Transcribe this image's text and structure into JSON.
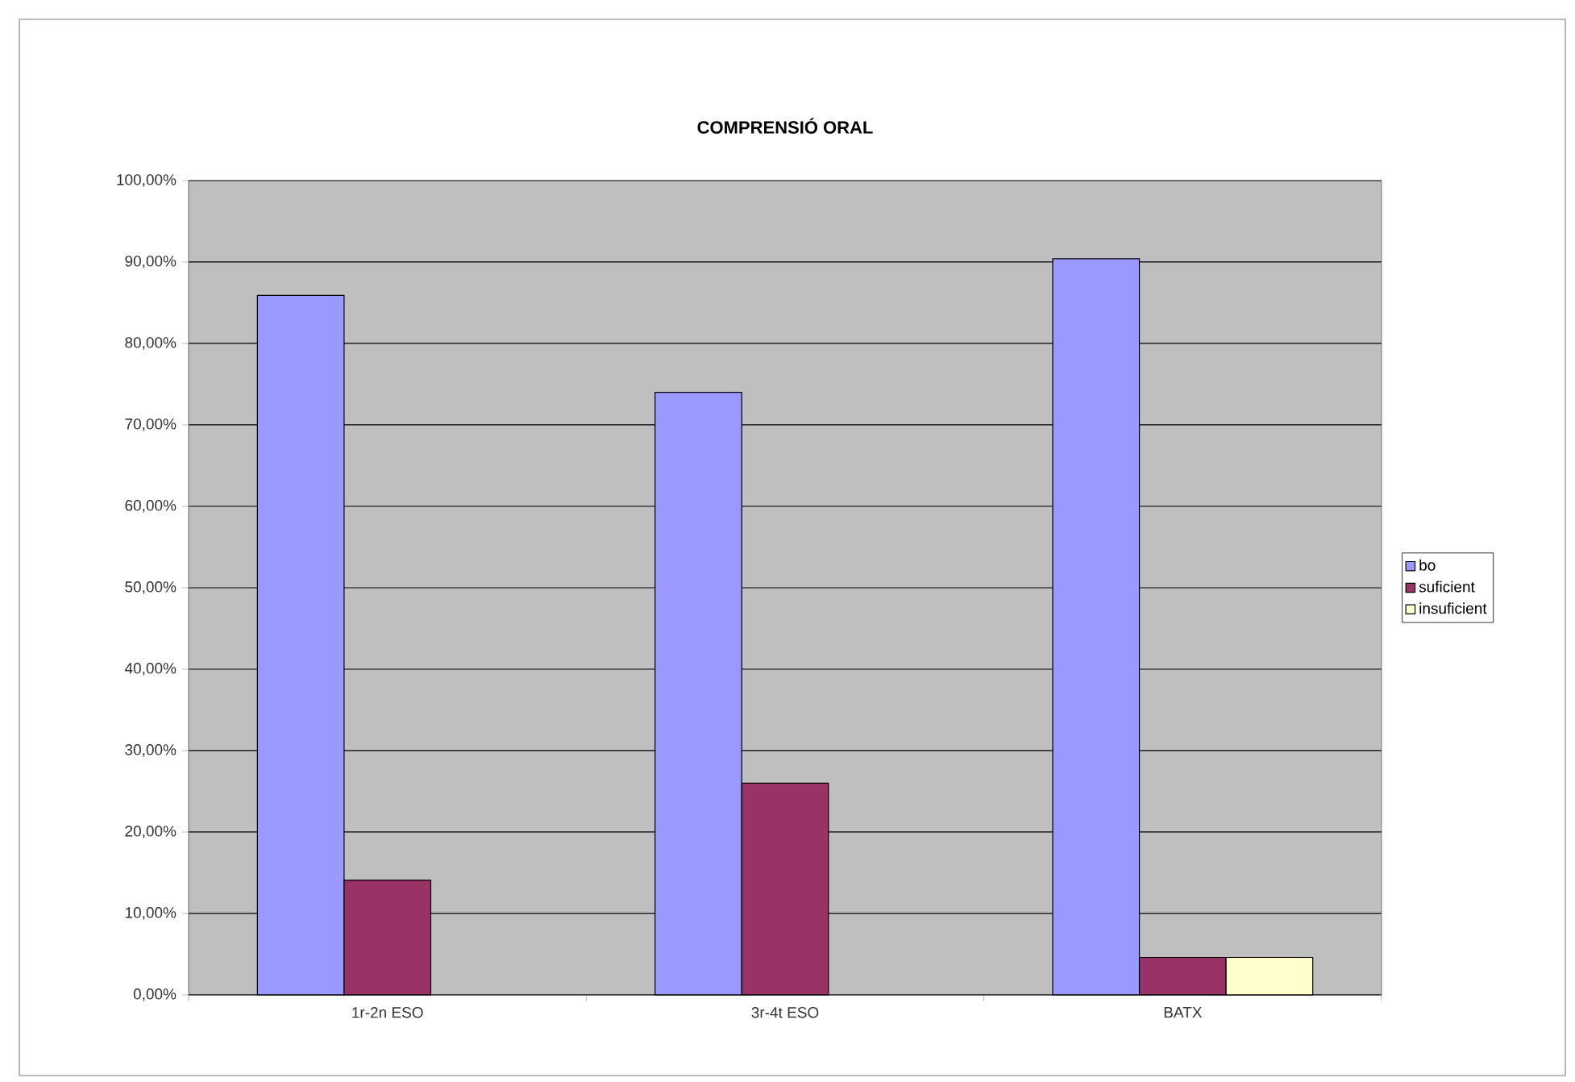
{
  "chart_data": {
    "type": "bar",
    "title": "COMPRENSIÓ ORAL",
    "categories": [
      "1r-2n ESO",
      "3r-4t ESO",
      "BATX"
    ],
    "series": [
      {
        "name": "bo",
        "color": "#9999ff",
        "values": [
          85.9,
          74.0,
          90.4
        ]
      },
      {
        "name": "suficient",
        "color": "#993366",
        "values": [
          14.1,
          26.0,
          4.6
        ]
      },
      {
        "name": "insuficient",
        "color": "#ffffcc",
        "values": [
          null,
          null,
          4.6
        ]
      }
    ],
    "ylim": [
      0,
      100
    ],
    "yticks": [
      {
        "value": 0,
        "label": "0,00%"
      },
      {
        "value": 10,
        "label": "10,00%"
      },
      {
        "value": 20,
        "label": "20,00%"
      },
      {
        "value": 30,
        "label": "30,00%"
      },
      {
        "value": 40,
        "label": "40,00%"
      },
      {
        "value": 50,
        "label": "50,00%"
      },
      {
        "value": 60,
        "label": "60,00%"
      },
      {
        "value": 70,
        "label": "70,00%"
      },
      {
        "value": 80,
        "label": "80,00%"
      },
      {
        "value": 90,
        "label": "90,00%"
      },
      {
        "value": 100,
        "label": "100,00%"
      }
    ],
    "grid": "y",
    "legend": "right"
  }
}
